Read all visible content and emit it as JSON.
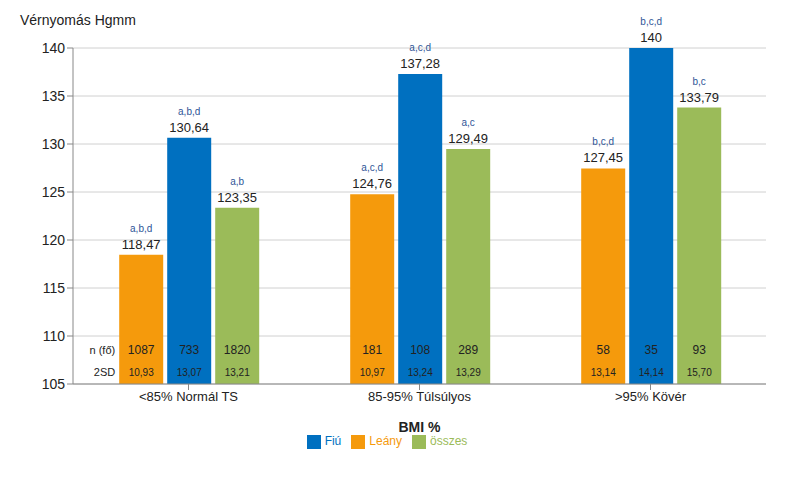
{
  "chart_data": {
    "type": "bar",
    "y_label": "Vérnyomás Hgmm",
    "x_label": "BMI %",
    "categories": [
      "<85% Normál TS",
      "85-95% Túlsúlyos",
      ">95% Kövér"
    ],
    "ylim": [
      105,
      140
    ],
    "yticks": [
      105,
      110,
      115,
      120,
      125,
      130,
      135,
      140
    ],
    "grid": true,
    "legend": "bottom",
    "data_labels": true,
    "n_label": "n (fő)",
    "sd_label": "2SD",
    "series": [
      {
        "name": "Leány",
        "color": "#f59a0c",
        "values": [
          118.47,
          124.76,
          127.45
        ],
        "value_labels": [
          "118,47",
          "124,76",
          "127,45"
        ],
        "n": [
          1087,
          181,
          58
        ],
        "sd": [
          10.93,
          10.97,
          13.14
        ],
        "sd_labels": [
          "10,93",
          "10,97",
          "13,14"
        ],
        "significance": [
          "a,b,d",
          "a,c,d",
          "b,c,d"
        ]
      },
      {
        "name": "Fiú",
        "color": "#0070c0",
        "values": [
          130.64,
          137.28,
          140
        ],
        "value_labels": [
          "130,64",
          "137,28",
          "140"
        ],
        "n": [
          733,
          108,
          35
        ],
        "sd": [
          13.07,
          13.24,
          14.14
        ],
        "sd_labels": [
          "13,07",
          "13,24",
          "14,14"
        ],
        "significance": [
          "a,b,d",
          "a,c,d",
          "b,c,d"
        ]
      },
      {
        "name": "összes",
        "color": "#9bbb59",
        "values": [
          123.35,
          129.49,
          133.79
        ],
        "value_labels": [
          "123,35",
          "129,49",
          "133,79"
        ],
        "n": [
          1820,
          289,
          93
        ],
        "sd": [
          13.21,
          13.29,
          15.7
        ],
        "sd_labels": [
          "13,21",
          "13,29",
          "15,70"
        ],
        "significance": [
          "a,b",
          "a,c",
          "b,c"
        ]
      }
    ]
  }
}
